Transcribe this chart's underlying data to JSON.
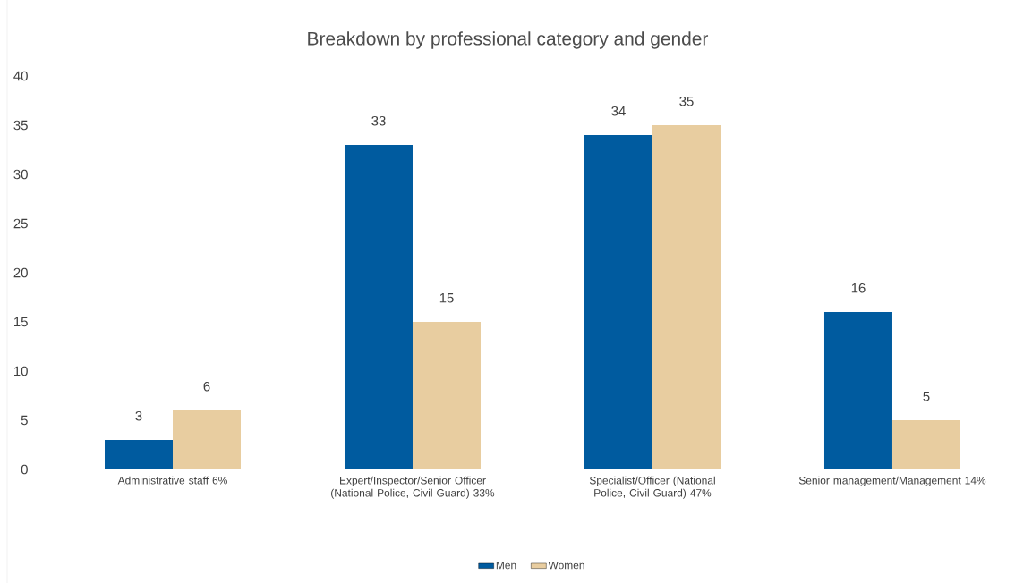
{
  "chart_data": {
    "type": "bar",
    "title": "Breakdown by professional category and gender",
    "categories": [
      "Administrative staff 6%",
      "Expert/Inspector/Senior Officer (National Police, Civil Guard) 33%",
      "Specialist/Officer (National Police, Civil Guard) 47%",
      "Senior management/Management 14%"
    ],
    "series": [
      {
        "name": "Men",
        "color": "#005b9f",
        "values": [
          3,
          33,
          34,
          16
        ]
      },
      {
        "name": "Women",
        "color": "#e8cda0",
        "values": [
          6,
          15,
          35,
          5
        ]
      }
    ],
    "ylim": [
      0,
      40
    ],
    "yticks": [
      0,
      5,
      10,
      15,
      20,
      25,
      30,
      35,
      40
    ],
    "data_labels": true,
    "legend": "bottom",
    "grid": false
  }
}
